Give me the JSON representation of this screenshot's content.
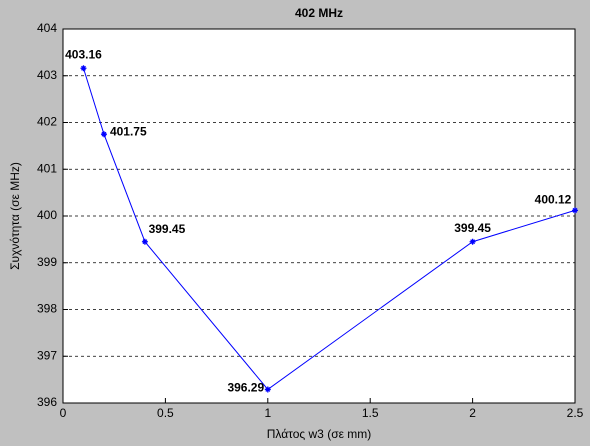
{
  "chart_data": {
    "type": "line",
    "title": "402 MHz",
    "x_label": "Πλάτος w3 (σε mm)",
    "y_label": "Συχνότητα (σε MHz)",
    "x": [
      0.1,
      0.2,
      0.4,
      1,
      2,
      2.5
    ],
    "values": [
      403.16,
      401.75,
      399.45,
      396.29,
      399.45,
      400.12
    ],
    "color": "#0000ff",
    "xlim": [
      0,
      2.5
    ],
    "xticks": [
      0,
      0.5,
      1,
      1.5,
      2,
      2.5
    ],
    "ylim": [
      396,
      404
    ],
    "yticks": [
      396,
      397,
      398,
      399,
      400,
      401,
      402,
      403,
      404
    ],
    "grid": true,
    "data_labels": true
  }
}
